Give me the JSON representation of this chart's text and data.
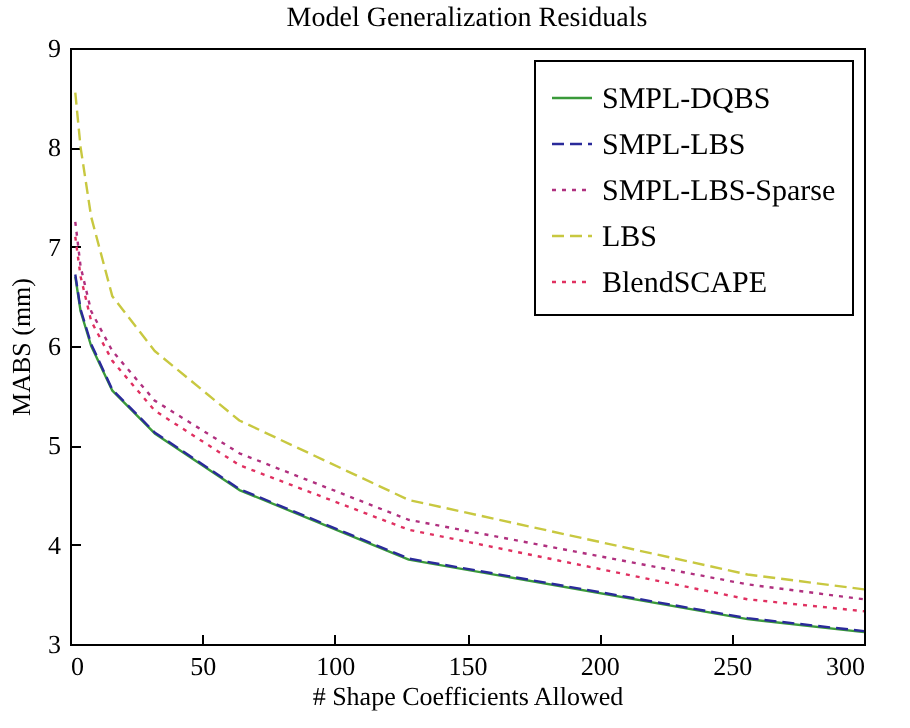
{
  "chart_data": {
    "type": "line",
    "title": "Model Generalization Residuals",
    "xlabel": "# Shape Coefficients Allowed",
    "ylabel": "MABS (mm)",
    "x": [
      2,
      4,
      8,
      16,
      32,
      64,
      128,
      256,
      300
    ],
    "series": [
      {
        "name": "SMPL-DQBS",
        "color": "#3a9a3a",
        "line_style": "solid",
        "values": [
          6.7,
          6.35,
          6.0,
          5.55,
          5.12,
          4.55,
          3.85,
          3.25,
          3.12
        ]
      },
      {
        "name": "SMPL-LBS",
        "color": "#2a2a9a",
        "line_style": "dashed",
        "values": [
          6.72,
          6.37,
          6.02,
          5.56,
          5.13,
          4.56,
          3.86,
          3.26,
          3.13
        ]
      },
      {
        "name": "SMPL-LBS-Sparse",
        "color": "#b0307f",
        "line_style": "dotted",
        "values": [
          7.25,
          6.8,
          6.35,
          5.95,
          5.45,
          4.92,
          4.25,
          3.6,
          3.45
        ]
      },
      {
        "name": "LBS",
        "color": "#c8c840",
        "line_style": "dashed",
        "values": [
          8.55,
          8.0,
          7.3,
          6.5,
          5.95,
          5.25,
          4.45,
          3.7,
          3.55
        ]
      },
      {
        "name": "BlendSCAPE",
        "color": "#e03060",
        "line_style": "dotted",
        "values": [
          7.1,
          6.7,
          6.25,
          5.85,
          5.35,
          4.8,
          4.15,
          3.45,
          3.33
        ]
      }
    ],
    "xlim": [
      0,
      300
    ],
    "xticks": [
      0,
      50,
      100,
      150,
      200,
      250,
      300
    ],
    "ylim": [
      3,
      9
    ],
    "yticks": [
      3,
      4,
      5,
      6,
      7,
      8,
      9
    ],
    "grid": false,
    "legend": "top right",
    "marker": "none"
  }
}
